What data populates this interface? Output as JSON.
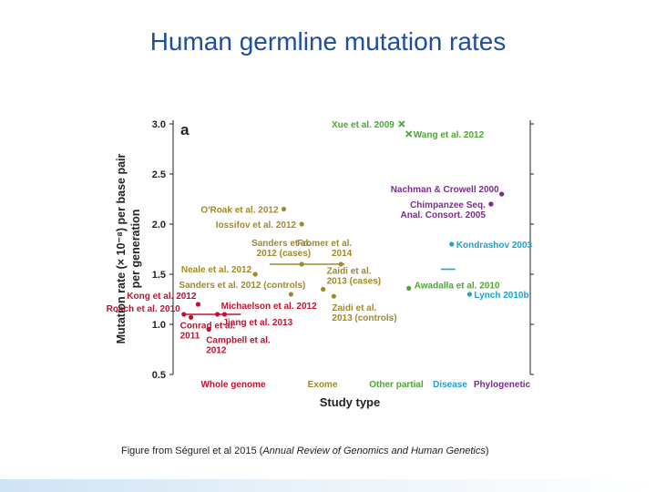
{
  "slide": {
    "title": "Human germline mutation rates",
    "caption_prefix": "Figure from Ségurel et al 2015 (",
    "caption_journal": "Annual Review of Genomics and Human Genetics",
    "caption_suffix": ")"
  },
  "colors": {
    "whole_genome": "#c8102e",
    "exome": "#a08a28",
    "other_partial": "#4aa832",
    "disease": "#1fa0d0",
    "phylogenetic": "#7a2e8c",
    "axis": "#222222"
  },
  "chart_data": {
    "type": "scatter",
    "panel_label": "a",
    "xlabel": "Study type",
    "ylabel_line1": "Mutation rate (× 10⁻⁸) per base pair",
    "ylabel_line2": "per generation",
    "ylim": [
      0.5,
      3.0
    ],
    "yticks": [
      "0.5",
      "1.0",
      "1.5",
      "2.0",
      "2.5",
      "3.0"
    ],
    "categories": [
      {
        "name": "Whole genome",
        "color": "#c8102e"
      },
      {
        "name": "Exome",
        "color": "#a08a28"
      },
      {
        "name": "Other partial",
        "color": "#4aa832"
      },
      {
        "name": "Disease",
        "color": "#1fa0d0"
      },
      {
        "name": "Phylogenetic",
        "color": "#7a2e8c"
      }
    ],
    "points": [
      {
        "label": "Kong et al. 2012",
        "category": "Whole genome",
        "x": 0.35,
        "y": 1.2
      },
      {
        "label": "Roach et al. 2010",
        "category": "Whole genome",
        "x": 0.15,
        "y": 1.1
      },
      {
        "label": "Conrad et al. 2011",
        "category": "Whole genome",
        "x": 0.25,
        "y": 1.07
      },
      {
        "label": "Campbell et al. 2012",
        "category": "Whole genome",
        "x": 0.5,
        "y": 0.95
      },
      {
        "label": "Michaelson et al. 2012",
        "category": "Whole genome",
        "x": 0.62,
        "y": 1.1
      },
      {
        "label": "Jiang et al. 2013",
        "category": "Whole genome",
        "x": 0.72,
        "y": 1.1
      },
      {
        "label": "O'Roak et al. 2012",
        "category": "Exome",
        "x": 1.55,
        "y": 2.15
      },
      {
        "label": "Iossifov et al. 2012",
        "category": "Exome",
        "x": 1.8,
        "y": 2.0
      },
      {
        "label": "Sanders et al. 2012 (cases)",
        "category": "Exome",
        "x": 1.8,
        "y": 1.6
      },
      {
        "label": "Neale et al. 2012",
        "category": "Exome",
        "x": 1.15,
        "y": 1.5
      },
      {
        "label": "Sanders et al. 2012 (controls)",
        "category": "Exome",
        "x": 1.65,
        "y": 1.3
      },
      {
        "label": "Fromer et al. 2014",
        "category": "Exome",
        "x": 2.35,
        "y": 1.6
      },
      {
        "label": "Zaidi et al. 2013 (cases)",
        "category": "Exome",
        "x": 2.1,
        "y": 1.35
      },
      {
        "label": "Zaidi et al. 2013 (controls)",
        "category": "Exome",
        "x": 2.25,
        "y": 1.28
      },
      {
        "label": "Xue et al. 2009",
        "category": "Other partial",
        "x": 3.2,
        "y": 3.0,
        "marker": "x"
      },
      {
        "label": "Wang et al. 2012",
        "category": "Other partial",
        "x": 3.3,
        "y": 2.9,
        "marker": "x"
      },
      {
        "label": "Awadalla et al. 2010",
        "category": "Other partial",
        "x": 3.3,
        "y": 1.36
      },
      {
        "label": "Kondrashov 2003",
        "category": "Disease",
        "x": 3.9,
        "y": 1.8
      },
      {
        "label": "Lynch 2010b",
        "category": "Disease",
        "x": 4.15,
        "y": 1.3
      },
      {
        "label": "Nachman & Crowell 2000",
        "category": "Phylogenetic",
        "x": 4.6,
        "y": 2.3
      },
      {
        "label": "Chimpanzee Seq. Anal. Consort. 2005",
        "category": "Phylogenetic",
        "x": 4.45,
        "y": 2.2
      }
    ]
  }
}
